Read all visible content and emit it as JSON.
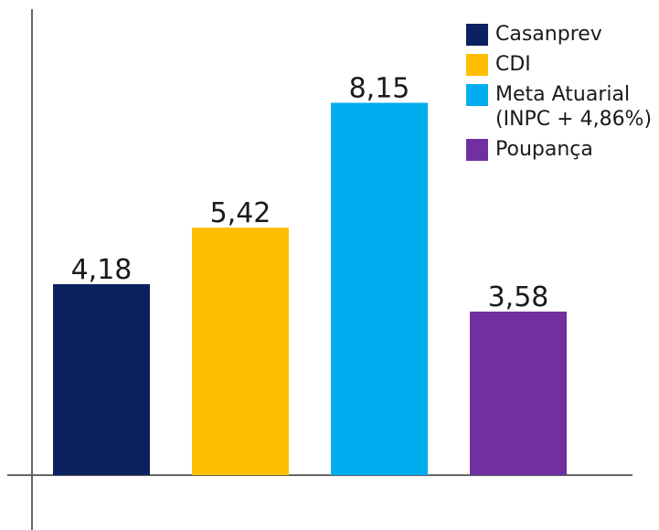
{
  "chart_data": {
    "type": "bar",
    "categories": [
      "Casanprev",
      "CDI",
      "Meta Atuarial (INPC + 4,86%)",
      "Poupança"
    ],
    "values": [
      4.18,
      5.42,
      8.15,
      3.58
    ],
    "value_labels": [
      "4,18",
      "5,42",
      "8,15",
      "3,58"
    ],
    "colors": [
      "#0b2160",
      "#ffbf00",
      "#00aeef",
      "#7030a0"
    ],
    "legend": [
      {
        "label": "Casanprev",
        "color": "#0b2160"
      },
      {
        "label": "CDI",
        "color": "#ffbf00"
      },
      {
        "label": "Meta Atuarial (INPC + 4,86%)",
        "color": "#00aeef"
      },
      {
        "label": "Poupança",
        "color": "#7030a0"
      }
    ],
    "legend_position": "top-right",
    "title": "",
    "xlabel": "",
    "ylabel": "",
    "grid": false,
    "ylim": [
      0,
      10.2
    ]
  }
}
